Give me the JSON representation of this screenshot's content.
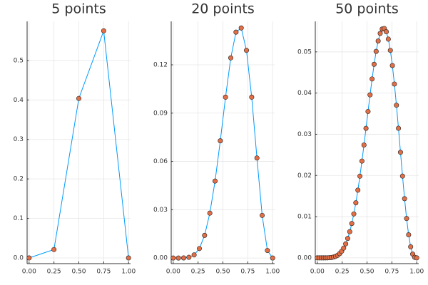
{
  "chart_data": [
    {
      "type": "line",
      "title": "5 points",
      "x": [
        0,
        0.25,
        0.5,
        0.75,
        1
      ],
      "series": [
        {
          "color": "#009afa",
          "marker_color": "#e36f47",
          "values": [
            0,
            0.0213,
            0.4038,
            0.575,
            0
          ]
        }
      ],
      "xlim": [
        -0.02,
        1.02
      ],
      "ylim": [
        -0.0144,
        0.599
      ],
      "xticks": [
        {
          "value": 0,
          "label": "0.00"
        },
        0.25,
        {
          "value": 0.5,
          "label": "0.50"
        },
        0.75,
        {
          "value": 1,
          "label": "1.00"
        }
      ],
      "yticks": [
        {
          "value": 0,
          "label": "0.0"
        },
        0.1,
        0.2,
        0.3,
        0.4,
        0.5
      ],
      "grid": true
    },
    {
      "type": "line",
      "title": "20 points",
      "x": [
        0,
        0.0526,
        0.1053,
        0.1579,
        0.2105,
        0.2632,
        0.3158,
        0.3684,
        0.4211,
        0.4737,
        0.5263,
        0.5789,
        0.6316,
        0.6842,
        0.7368,
        0.7895,
        0.8421,
        0.8947,
        0.9474,
        1
      ],
      "series": [
        {
          "color": "#009afa",
          "marker_color": "#e36f47",
          "values": [
            0,
            1e-06,
            4.3e-05,
            0.000409,
            0.001895,
            0.00587,
            0.01404,
            0.02785,
            0.04779,
            0.0728,
            0.0999,
            0.1243,
            0.1403,
            0.1429,
            0.129,
            0.0999,
            0.0621,
            0.02646,
            0.00466,
            0
          ]
        }
      ],
      "xlim": [
        -0.02,
        1.02
      ],
      "ylim": [
        -0.0035,
        0.147
      ],
      "xticks": [
        {
          "value": 0,
          "label": "0.00"
        },
        0.25,
        {
          "value": 0.5,
          "label": "0.50"
        },
        0.75,
        {
          "value": 1,
          "label": "1.00"
        }
      ],
      "yticks": [
        {
          "value": 0,
          "label": "0.00"
        },
        {
          "value": 0.03,
          "label": "0.03"
        },
        {
          "value": 0.06,
          "label": "0.06"
        },
        {
          "value": 0.09,
          "label": "0.09"
        },
        {
          "value": 0.12,
          "label": "0.12"
        }
      ],
      "grid": true
    },
    {
      "type": "line",
      "title": "50 points",
      "x": [
        0,
        0.0204,
        0.0408,
        0.0612,
        0.0816,
        0.102,
        0.1224,
        0.1429,
        0.1633,
        0.1837,
        0.2041,
        0.2245,
        0.2449,
        0.2653,
        0.2857,
        0.3061,
        0.3265,
        0.3469,
        0.3673,
        0.3878,
        0.4082,
        0.4286,
        0.449,
        0.4694,
        0.4898,
        0.5102,
        0.5306,
        0.551,
        0.5714,
        0.5918,
        0.6122,
        0.6327,
        0.6531,
        0.6735,
        0.6939,
        0.7143,
        0.7347,
        0.7551,
        0.7755,
        0.7959,
        0.8163,
        0.8367,
        0.8571,
        0.8776,
        0.898,
        0.9184,
        0.9388,
        0.9592,
        0.9796,
        1
      ],
      "series": [
        {
          "color": "#009afa",
          "marker_color": "#e36f47",
          "values": [
            0,
            0,
            0,
            1e-06,
            4e-06,
            1.4e-05,
            3.9e-05,
            9.2e-05,
            0.00019,
            0.00036,
            0.00062,
            0.00102,
            0.00159,
            0.00237,
            0.0034,
            0.00471,
            0.00635,
            0.00833,
            0.01067,
            0.01337,
            0.01643,
            0.01982,
            0.02349,
            0.02739,
            0.03143,
            0.03553,
            0.03956,
            0.04342,
            0.04698,
            0.05012,
            0.05265,
            0.05448,
            0.05554,
            0.05568,
            0.05489,
            0.05309,
            0.05036,
            0.04668,
            0.04219,
            0.03705,
            0.03145,
            0.02562,
            0.01984,
            0.01436,
            0.00955,
            0.0056,
            0.00269,
            0.00091,
            0.00013,
            0
          ]
        }
      ],
      "xlim": [
        -0.02,
        1.02
      ],
      "ylim": [
        -0.0014,
        0.0574
      ],
      "xticks": [
        {
          "value": 0,
          "label": "0.00"
        },
        0.25,
        {
          "value": 0.5,
          "label": "0.50"
        },
        0.75,
        {
          "value": 1,
          "label": "1.00"
        }
      ],
      "yticks": [
        {
          "value": 0,
          "label": "0.00"
        },
        0.01,
        0.02,
        0.03,
        0.04,
        0.05
      ],
      "grid": true
    }
  ]
}
